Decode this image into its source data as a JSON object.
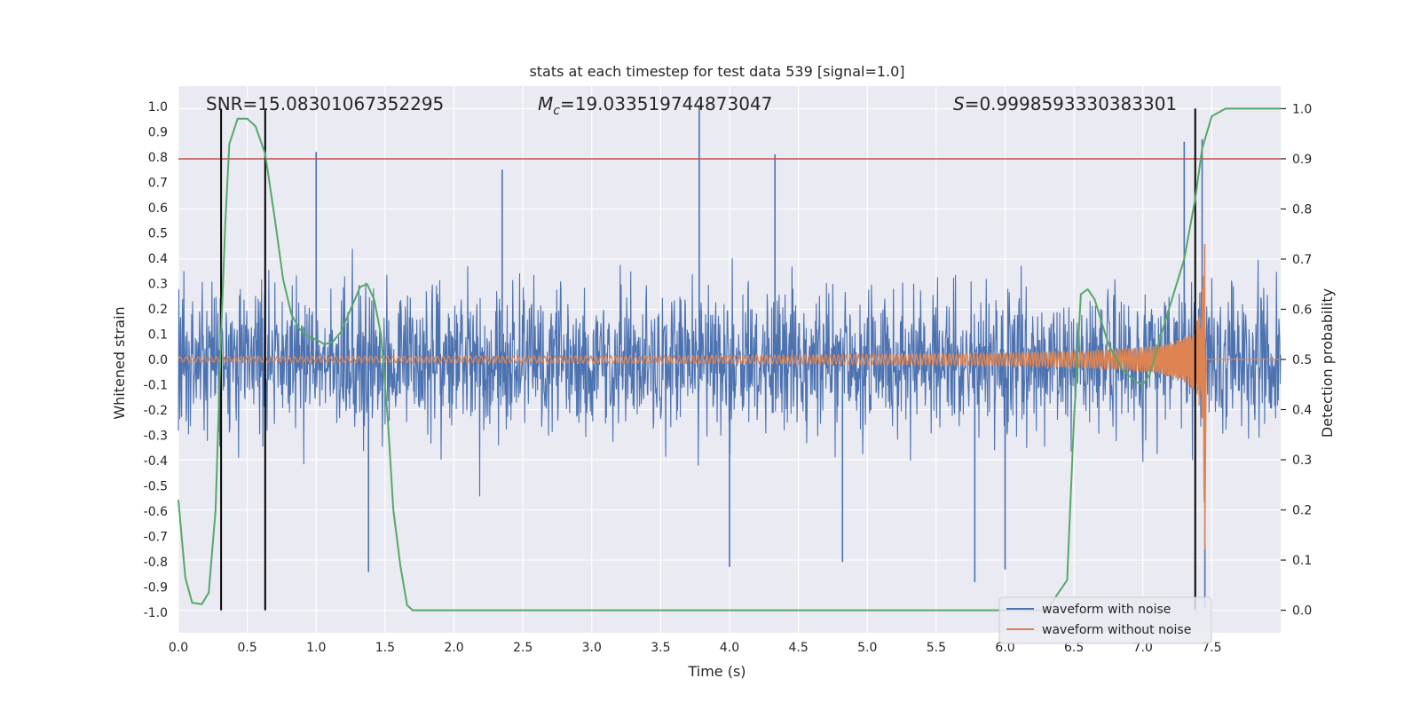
{
  "chart_data": {
    "type": "line",
    "title": "stats at each timestep for test data 539 [signal=1.0]",
    "xlabel": "Time (s)",
    "ylabel_left": "Whitened strain",
    "ylabel_right": "Detection probability",
    "xlim": [
      0.0,
      8.0
    ],
    "ylim_left": [
      -1.08,
      1.08
    ],
    "ylim_right": [
      -0.045,
      1.045
    ],
    "x_ticks": [
      0.0,
      0.5,
      1.0,
      1.5,
      2.0,
      2.5,
      3.0,
      3.5,
      4.0,
      4.5,
      5.0,
      5.5,
      6.0,
      6.5,
      7.0,
      7.5
    ],
    "x_tick_labels": [
      "0.0",
      "0.5",
      "1.0",
      "1.5",
      "2.0",
      "2.5",
      "3.0",
      "3.5",
      "4.0",
      "4.5",
      "5.0",
      "5.5",
      "6.0",
      "6.5",
      "7.0",
      "7.5"
    ],
    "y_left_ticks": [
      1.0,
      0.9,
      0.8,
      0.7,
      0.6,
      0.5,
      0.4,
      0.3,
      0.2,
      0.1,
      0.0,
      -0.1,
      -0.2,
      -0.3,
      -0.4,
      -0.5,
      -0.6,
      -0.7,
      -0.8,
      -0.9,
      -1.0
    ],
    "y_left_tick_labels": [
      "1.0",
      "0.9",
      "0.8",
      "0.7",
      "0.6",
      "0.5",
      "0.4",
      "0.3",
      "0.2",
      "0.1",
      "0.0",
      "-0.1",
      "-0.2",
      "-0.3",
      "-0.4",
      "-0.5",
      "-0.6",
      "-0.7",
      "-0.8",
      "-0.9",
      "-1.0"
    ],
    "y_right_ticks": [
      1.0,
      0.9,
      0.8,
      0.7,
      0.6,
      0.5,
      0.4,
      0.3,
      0.2,
      0.1,
      0.0
    ],
    "y_right_tick_labels": [
      "1.0",
      "0.9",
      "0.8",
      "0.7",
      "0.6",
      "0.5",
      "0.4",
      "0.3",
      "0.2",
      "0.1",
      "0.0"
    ],
    "grid": true,
    "legend_position": "lower-right",
    "annotations": {
      "snr": "SNR=15.08301067352295",
      "mc_symbol": "M",
      "mc_sub": "c",
      "mc_value": "=19.033519744873047",
      "s_symbol": "S",
      "s_value": "=0.9998593330383301"
    },
    "threshold": {
      "axis": "right",
      "value": 0.9,
      "color": "#c44e52"
    },
    "vertical_markers": {
      "x": [
        0.31,
        0.63,
        7.38
      ],
      "y_range_right": [
        0.0,
        1.0
      ],
      "color": "#000000"
    },
    "series": [
      {
        "name": "waveform with noise",
        "axis": "left",
        "color": "#4c72b0",
        "kind": "noise",
        "x_range": [
          0.0,
          8.0
        ],
        "typical_envelope": 0.38,
        "peak_points": [
          {
            "x": 1.0,
            "y": 0.82
          },
          {
            "x": 1.38,
            "y": -0.84
          },
          {
            "x": 2.35,
            "y": 0.75
          },
          {
            "x": 3.78,
            "y": 1.0
          },
          {
            "x": 4.0,
            "y": -0.82
          },
          {
            "x": 4.33,
            "y": 0.81
          },
          {
            "x": 4.82,
            "y": -0.8
          },
          {
            "x": 5.78,
            "y": -0.88
          },
          {
            "x": 6.0,
            "y": -0.83
          },
          {
            "x": 7.3,
            "y": 0.86
          },
          {
            "x": 7.43,
            "y": 0.87
          },
          {
            "x": 7.45,
            "y": -0.98
          }
        ]
      },
      {
        "name": "waveform without noise",
        "axis": "left",
        "color": "#dd8452",
        "kind": "chirp",
        "x_range": [
          0.0,
          7.45
        ],
        "start_amplitude": 0.01,
        "end_amplitude": 0.7,
        "merger_time": 7.45
      },
      {
        "name": "detection probability",
        "axis": "right",
        "color": "#55a868",
        "kind": "line",
        "x": [
          0.0,
          0.05,
          0.1,
          0.17,
          0.22,
          0.27,
          0.31,
          0.34,
          0.37,
          0.43,
          0.5,
          0.56,
          0.63,
          0.7,
          0.76,
          0.82,
          0.88,
          0.95,
          1.0,
          1.06,
          1.12,
          1.18,
          1.25,
          1.32,
          1.37,
          1.42,
          1.47,
          1.52,
          1.56,
          1.61,
          1.66,
          1.7,
          2.0,
          3.0,
          4.0,
          5.0,
          6.0,
          6.3,
          6.45,
          6.5,
          6.55,
          6.6,
          6.65,
          6.75,
          6.85,
          6.95,
          7.0,
          7.05,
          7.1,
          7.2,
          7.3,
          7.38,
          7.43,
          7.5,
          7.6,
          7.7,
          8.0
        ],
        "y": [
          0.22,
          0.065,
          0.015,
          0.012,
          0.035,
          0.2,
          0.55,
          0.77,
          0.93,
          0.98,
          0.98,
          0.965,
          0.91,
          0.78,
          0.66,
          0.59,
          0.56,
          0.545,
          0.54,
          0.53,
          0.535,
          0.555,
          0.6,
          0.645,
          0.65,
          0.62,
          0.55,
          0.38,
          0.2,
          0.09,
          0.01,
          0.0,
          0.0,
          0.0,
          0.0,
          0.0,
          0.0,
          0.0,
          0.06,
          0.38,
          0.63,
          0.64,
          0.62,
          0.53,
          0.48,
          0.455,
          0.45,
          0.47,
          0.52,
          0.61,
          0.7,
          0.82,
          0.92,
          0.985,
          1.0,
          1.0,
          1.0
        ]
      }
    ],
    "legend_entries": [
      {
        "label": "waveform with noise",
        "color": "#4c72b0"
      },
      {
        "label": "waveform without noise",
        "color": "#dd8452"
      }
    ]
  }
}
